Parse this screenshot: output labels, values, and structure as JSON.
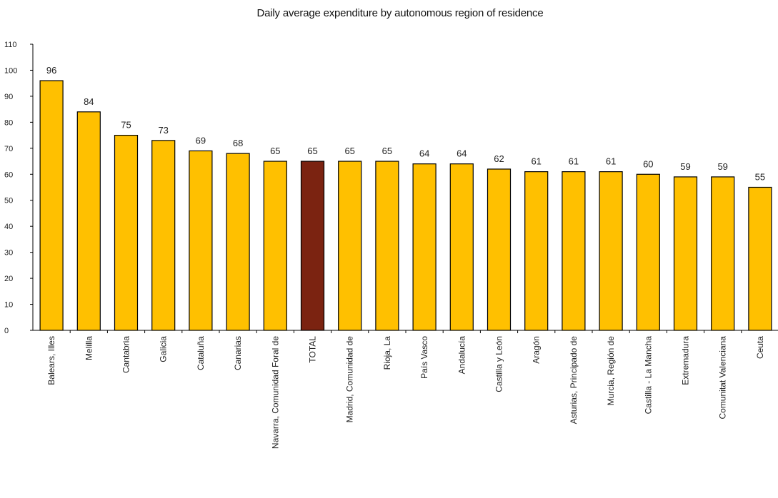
{
  "chart_data": {
    "type": "bar",
    "title": "Daily average expenditure by autonomous region of residence",
    "xlabel": "",
    "ylabel": "",
    "ylim": [
      0,
      110
    ],
    "yticks": [
      0,
      10,
      20,
      30,
      40,
      50,
      60,
      70,
      80,
      90,
      100,
      110
    ],
    "grid": false,
    "legend": false,
    "categories": [
      "Balears, Illes",
      "Melilla",
      "Cantabria",
      "Galicia",
      "Cataluña",
      "Canarias",
      "Navarra, Comunidad Foral de",
      "TOTAL",
      "Madrid, Comunidad de",
      "Rioja, La",
      "País Vasco",
      "Andalucía",
      "Castilla y León",
      "Aragón",
      "Asturias, Principado de",
      "Murcia, Región de",
      "Castilla - La Mancha",
      "Extremadura",
      "Comunitat Valenciana",
      "Ceuta"
    ],
    "values": [
      96,
      84,
      75,
      73,
      69,
      68,
      65,
      65,
      65,
      65,
      64,
      64,
      62,
      61,
      61,
      61,
      60,
      59,
      59,
      55
    ],
    "colors": {
      "bar": "#FFC000",
      "highlight": "#7B2311",
      "highlight_category": "TOTAL",
      "outline": "#000000"
    }
  }
}
